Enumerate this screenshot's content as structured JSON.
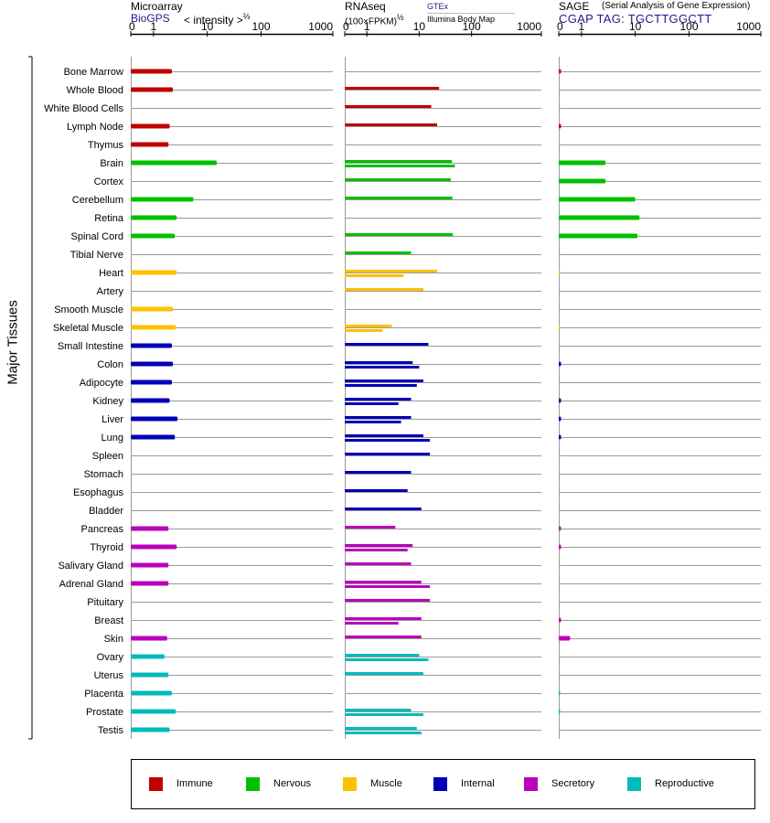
{
  "headers": {
    "microarray": {
      "title": "Microarray",
      "source_link": "BioGPS",
      "scale_label": "< intensity >",
      "scale_exponent": "⅔"
    },
    "rnaseq": {
      "title": "RNAseq",
      "scale_label": "(100×FPKM)",
      "scale_exponent": "½",
      "source_link_1": "GTEx",
      "source_2": "Illumina Body Map"
    },
    "sage": {
      "title": "SAGE",
      "subtitle": "(Serial Analysis of Gene Expression)",
      "tag_label": "CGAP TAG: TGCTTGGCTT"
    }
  },
  "y_axis_label": "Major Tissues",
  "chart_data": {
    "type": "bar",
    "categories": [
      "Bone Marrow",
      "Whole Blood",
      "White Blood Cells",
      "Lymph Node",
      "Thymus",
      "Brain",
      "Cortex",
      "Cerebellum",
      "Retina",
      "Spinal Cord",
      "Tibial Nerve",
      "Heart",
      "Artery",
      "Smooth Muscle",
      "Skeletal Muscle",
      "Small Intestine",
      "Colon",
      "Adipocyte",
      "Kidney",
      "Liver",
      "Lung",
      "Spleen",
      "Stomach",
      "Esophagus",
      "Bladder",
      "Pancreas",
      "Thyroid",
      "Salivary Gland",
      "Adrenal Gland",
      "Pituitary",
      "Breast",
      "Skin",
      "Ovary",
      "Uterus",
      "Placenta",
      "Prostate",
      "Testis"
    ],
    "groups": [
      "Immune",
      "Immune",
      "Immune",
      "Immune",
      "Immune",
      "Nervous",
      "Nervous",
      "Nervous",
      "Nervous",
      "Nervous",
      "Nervous",
      "Muscle",
      "Muscle",
      "Muscle",
      "Muscle",
      "Internal",
      "Internal",
      "Internal",
      "Internal",
      "Internal",
      "Internal",
      "Internal",
      "Internal",
      "Internal",
      "Internal",
      "Secretory",
      "Secretory",
      "Secretory",
      "Secretory",
      "Secretory",
      "Secretory",
      "Secretory",
      "Reproductive",
      "Reproductive",
      "Reproductive",
      "Reproductive",
      "Reproductive"
    ],
    "group_colors": {
      "Immune": "#c00000",
      "Nervous": "#00c000",
      "Muscle": "#ffc000",
      "Internal": "#0000b8",
      "Secretory": "#bb00bb",
      "Reproductive": "#00bbbb"
    },
    "legend": [
      "Immune",
      "Nervous",
      "Muscle",
      "Internal",
      "Secretory",
      "Reproductive"
    ],
    "axis_ticks": [
      "0",
      "1",
      "10",
      "100",
      "1000"
    ],
    "axis_tick_values": [
      0,
      1,
      10,
      100,
      1000
    ],
    "xlim": [
      0,
      1000
    ],
    "scale": "log-like (0 to 1000)",
    "series": [
      {
        "name": "Microarray",
        "values": [
          2.2,
          2.3,
          null,
          2.0,
          1.9,
          15.0,
          null,
          5.5,
          2.7,
          2.5,
          null,
          2.7,
          null,
          2.3,
          2.6,
          2.2,
          2.3,
          2.2,
          2.0,
          2.8,
          2.5,
          null,
          null,
          null,
          null,
          1.9,
          2.7,
          1.9,
          1.9,
          null,
          null,
          1.8,
          1.6,
          1.9,
          2.2,
          2.6,
          2.0
        ]
      },
      {
        "name": "GTEx",
        "values": [
          null,
          24,
          17,
          22,
          null,
          42,
          40,
          43,
          null,
          44,
          7,
          22,
          12,
          null,
          3,
          15,
          7.5,
          12,
          7,
          7,
          12,
          16,
          7,
          6,
          11,
          3.5,
          7.5,
          7,
          11,
          16,
          11,
          11,
          10,
          12,
          null,
          7,
          9
        ]
      },
      {
        "name": "Illumina Body Map",
        "values": [
          null,
          null,
          null,
          null,
          null,
          48,
          null,
          null,
          null,
          null,
          null,
          5,
          null,
          null,
          2,
          null,
          10,
          9,
          4,
          4.5,
          16,
          null,
          null,
          null,
          null,
          null,
          6,
          null,
          16,
          null,
          4,
          null,
          15,
          null,
          null,
          12,
          11
        ]
      },
      {
        "name": "SAGE",
        "values": [
          0.1,
          null,
          null,
          0.1,
          null,
          2.8,
          2.8,
          10,
          12,
          11,
          null,
          0.05,
          null,
          null,
          0.05,
          null,
          0.1,
          null,
          0.1,
          0.1,
          0.1,
          null,
          null,
          null,
          null,
          0.1,
          0.1,
          null,
          null,
          null,
          0.1,
          0.5,
          null,
          null,
          0.05,
          0.05,
          null
        ]
      }
    ]
  }
}
